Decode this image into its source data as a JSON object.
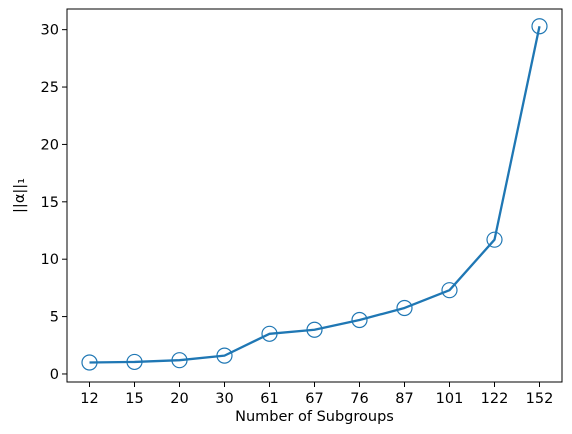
{
  "chart_data": {
    "type": "line",
    "title": "",
    "xlabel": "Number of Subgroups",
    "ylabel": "||α||₁",
    "categories": [
      "12",
      "15",
      "20",
      "30",
      "61",
      "67",
      "76",
      "87",
      "101",
      "122",
      "152"
    ],
    "series": [
      {
        "values": [
          1.0,
          1.05,
          1.2,
          1.6,
          3.5,
          3.85,
          4.7,
          5.75,
          7.3,
          11.7,
          30.3
        ],
        "color": "#1f77b4",
        "marker": "open-circle"
      }
    ],
    "yticks": [
      0,
      5,
      10,
      15,
      20,
      25,
      30
    ],
    "ylim": [
      -0.7,
      31.8
    ],
    "grid": false,
    "legend": false
  }
}
